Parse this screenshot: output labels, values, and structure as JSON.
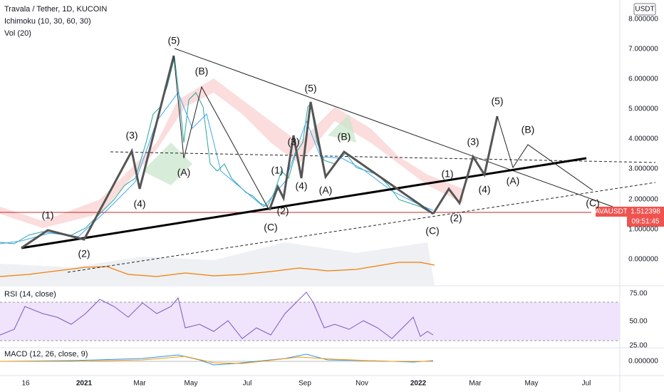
{
  "header": {
    "symbol": "Travala / Tether, 1D, KUCOIN",
    "ichimoku": "Ichimoku (10, 30, 60, 30)",
    "volume": "Vol (20)",
    "currency": "USDT"
  },
  "price_axis": [
    "8.000000",
    "7.000000",
    "6.000000",
    "5.000000",
    "4.000000",
    "3.000000",
    "2.000000",
    "1.000000",
    "0.000000"
  ],
  "price_label": {
    "ticker": "AVAUSDT",
    "price": "1.512398",
    "countdown": "09:51:45"
  },
  "rsi": {
    "title": "RSI (14, close)",
    "ticks": [
      "75.00",
      "50.00",
      "25.00"
    ]
  },
  "macd": {
    "title": "MACD (12, 26, close, 9)",
    "tick": "0.000000"
  },
  "time_axis": [
    "16",
    "2021",
    "Mar",
    "May",
    "Jul",
    "Sep",
    "Nov",
    "2022",
    "Mar",
    "May",
    "Jul"
  ],
  "wave_labels": [
    "(1)",
    "(2)",
    "(3)",
    "(4)",
    "(5)",
    "(B)",
    "(A)",
    "(1)",
    "(2)",
    "(3)",
    "(4)",
    "(5)",
    "(C)",
    "(B)",
    "(A)",
    "(C)",
    "(2)",
    "(1)",
    "(3)",
    "(4)",
    "(5)",
    "(B)",
    "(A)",
    "(C)"
  ]
}
